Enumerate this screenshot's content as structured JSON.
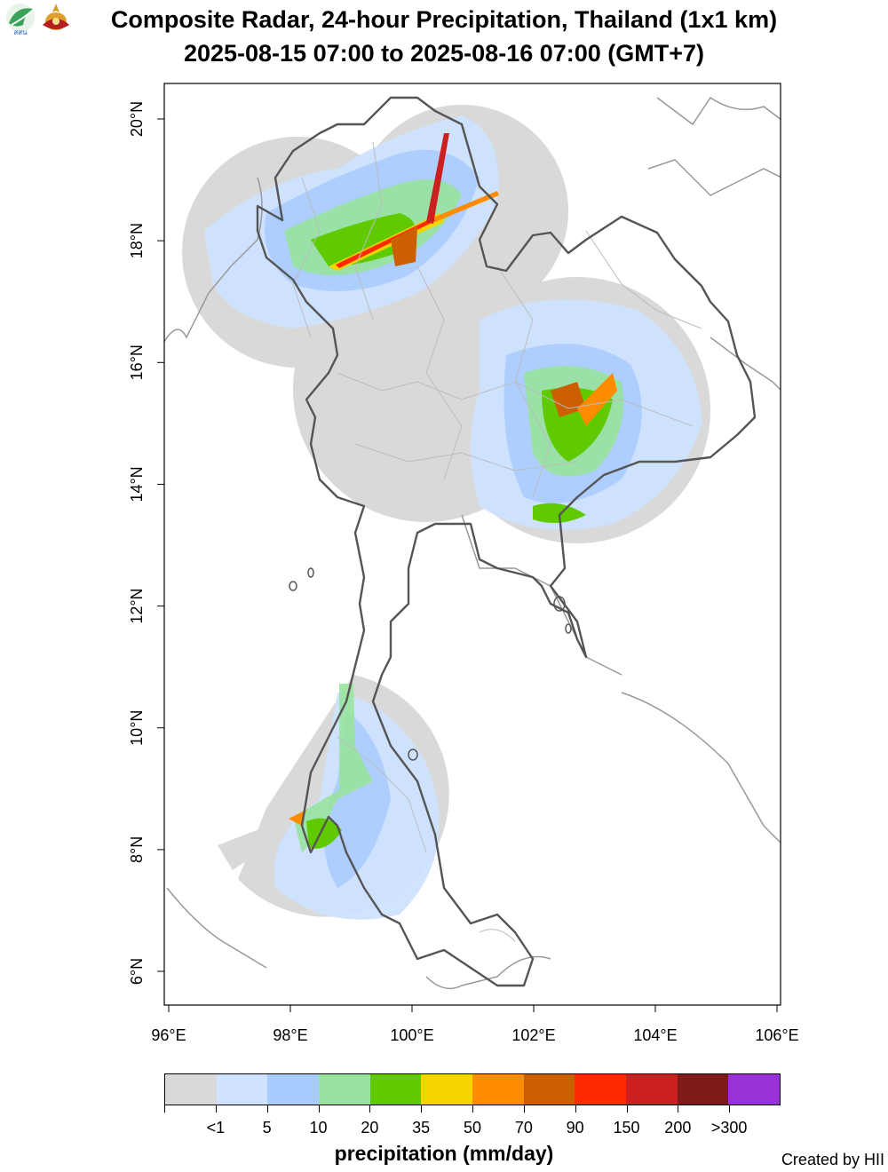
{
  "header": {
    "title_line1": "Composite Radar, 24-hour Precipitation, Thailand (1x1 km)",
    "title_line2": "2025-08-15 07:00 to 2025-08-16 07:00 (GMT+7)",
    "logo_left_text": "สสน"
  },
  "map": {
    "lon_range": [
      96,
      106
    ],
    "lat_range": [
      6,
      20
    ],
    "lon_ticks": [
      "96°E",
      "98°E",
      "100°E",
      "102°E",
      "104°E",
      "106°E"
    ],
    "lat_ticks": [
      "6°N",
      "8°N",
      "10°N",
      "12°N",
      "14°N",
      "16°N",
      "18°N",
      "20°N"
    ]
  },
  "legend": {
    "title": "precipitation (mm/day)",
    "labels": [
      "<1",
      "5",
      "10",
      "20",
      "35",
      "50",
      "70",
      "90",
      "150",
      "200",
      ">300"
    ],
    "colors": [
      "#d9d9d9",
      "#cfe3ff",
      "#a9ccff",
      "#98e39f",
      "#5fca00",
      "#f5d400",
      "#ff8c00",
      "#cc6000",
      "#ff2a00",
      "#cc2020",
      "#7f1a1a",
      "#9933d9"
    ]
  },
  "credit": "Created by HII"
}
